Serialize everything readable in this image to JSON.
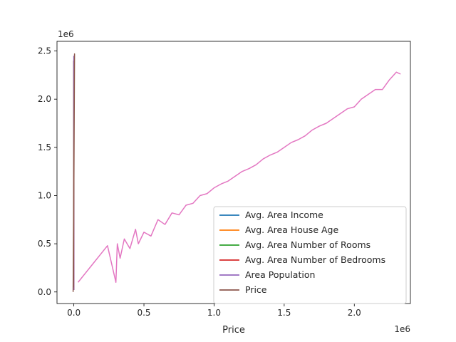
{
  "chart_data": {
    "type": "line",
    "title": "",
    "xlabel": "Price",
    "ylabel": "",
    "x_offset_text": "1e6",
    "y_offset_text": "1e6",
    "xlim": [
      -0.12,
      2.4
    ],
    "ylim": [
      -0.12,
      2.6
    ],
    "x_ticks": [
      0.0,
      0.5,
      1.0,
      1.5,
      2.0
    ],
    "x_tick_labels": [
      "0.0",
      "0.5",
      "1.0",
      "1.5",
      "2.0"
    ],
    "y_ticks": [
      0.0,
      0.5,
      1.0,
      1.5,
      2.0,
      2.5
    ],
    "y_tick_labels": [
      "0.0",
      "0.5",
      "1.0",
      "1.5",
      "2.0",
      "2.5"
    ],
    "grid": false,
    "legend_position": "lower-right",
    "series": [
      {
        "name": "Avg. Area Income",
        "color": "#1f77b4",
        "x": [
          0.0,
          0.0
        ],
        "y": [
          0.02,
          2.4
        ]
      },
      {
        "name": "Avg. Area House Age",
        "color": "#ff7f0e",
        "x": [
          0.0,
          0.0
        ],
        "y": [
          0.02,
          2.4
        ]
      },
      {
        "name": "Avg. Area Number of Rooms",
        "color": "#2ca02c",
        "x": [
          0.0,
          0.0
        ],
        "y": [
          0.02,
          2.4
        ]
      },
      {
        "name": "Avg. Area Number of Bedrooms",
        "color": "#d62728",
        "x": [
          0.0,
          0.0
        ],
        "y": [
          0.02,
          2.4
        ]
      },
      {
        "name": "Area Population",
        "color": "#9467bd",
        "x": [
          0.0,
          0.0
        ],
        "y": [
          0.02,
          2.45
        ]
      },
      {
        "name": "Price",
        "color": "#8c564b",
        "x": [
          -0.005,
          0.005,
          -0.003,
          0.004,
          0.0
        ],
        "y": [
          0.0,
          2.47,
          0.05,
          2.2,
          1.0
        ]
      },
      {
        "name": "",
        "color": "#e377c2",
        "x": [
          0.03,
          0.24,
          0.3,
          0.31,
          0.33,
          0.36,
          0.4,
          0.44,
          0.46,
          0.5,
          0.55,
          0.6,
          0.65,
          0.7,
          0.75,
          0.8,
          0.85,
          0.9,
          0.95,
          1.0,
          1.05,
          1.1,
          1.15,
          1.2,
          1.25,
          1.3,
          1.35,
          1.4,
          1.45,
          1.5,
          1.55,
          1.6,
          1.65,
          1.7,
          1.75,
          1.8,
          1.85,
          1.9,
          1.95,
          2.0,
          2.05,
          2.1,
          2.15,
          2.2,
          2.25,
          2.3,
          2.33
        ],
        "y": [
          0.1,
          0.48,
          0.1,
          0.5,
          0.35,
          0.55,
          0.45,
          0.65,
          0.5,
          0.62,
          0.58,
          0.75,
          0.7,
          0.82,
          0.8,
          0.9,
          0.92,
          1.0,
          1.02,
          1.08,
          1.12,
          1.15,
          1.2,
          1.25,
          1.28,
          1.32,
          1.38,
          1.42,
          1.45,
          1.5,
          1.55,
          1.58,
          1.62,
          1.68,
          1.72,
          1.75,
          1.8,
          1.85,
          1.9,
          1.92,
          2.0,
          2.05,
          2.1,
          2.1,
          2.2,
          2.28,
          2.26
        ]
      }
    ]
  }
}
